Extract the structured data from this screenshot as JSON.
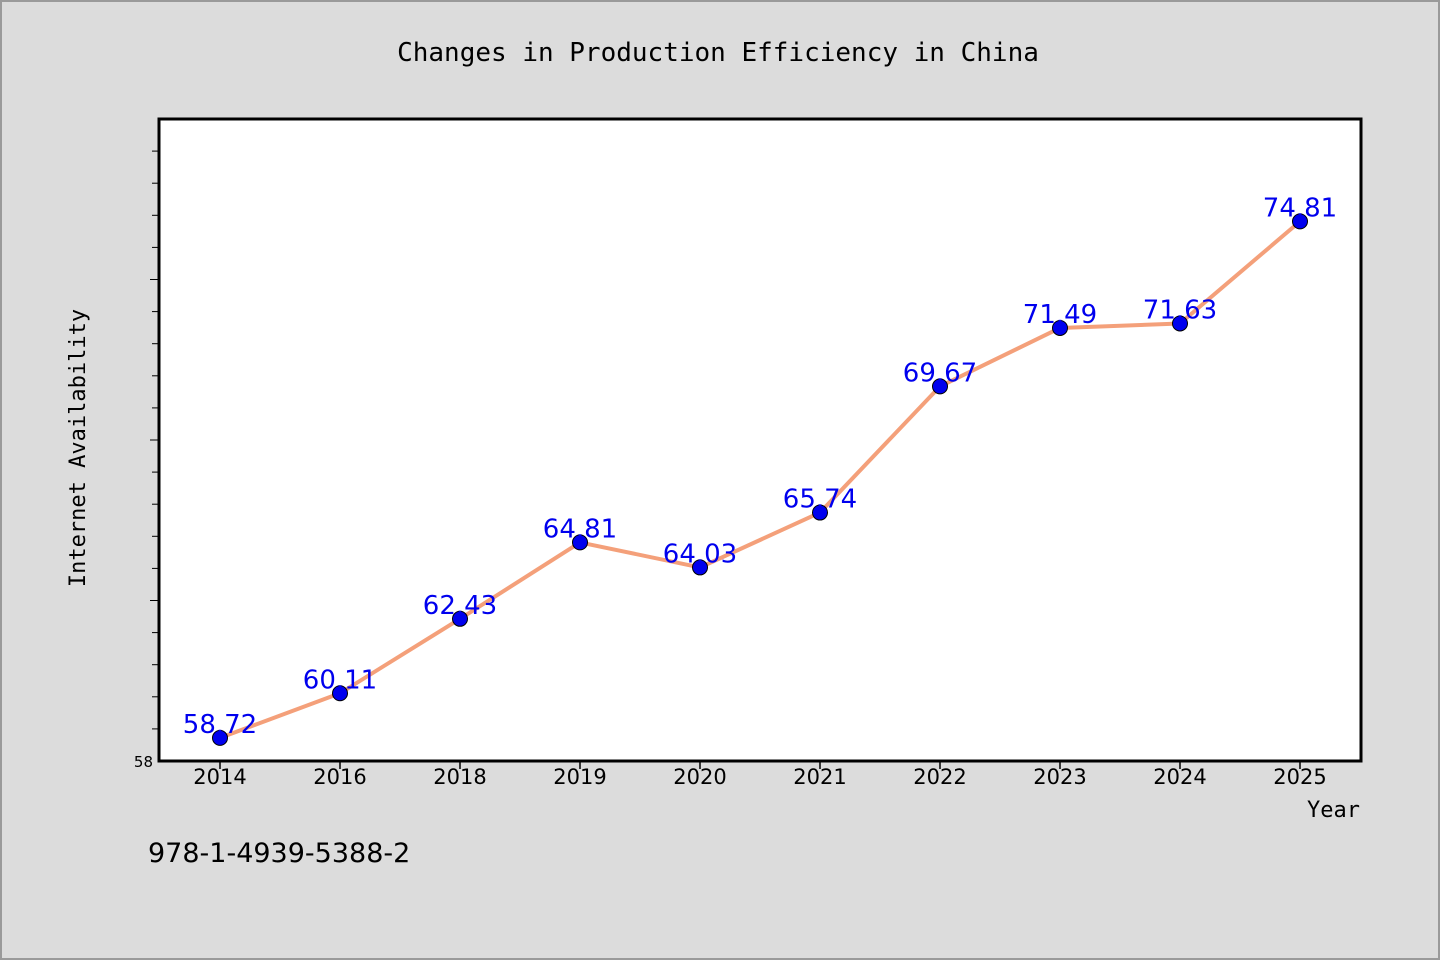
{
  "chart_data": {
    "type": "line",
    "title": "Changes in Production Efficiency in China",
    "xlabel": "Year",
    "ylabel": "Internet Availability",
    "categories": [
      "2014",
      "2016",
      "2018",
      "2019",
      "2020",
      "2021",
      "2022",
      "2023",
      "2024",
      "2025"
    ],
    "series": [
      {
        "values": [
          58.72,
          60.11,
          62.43,
          64.81,
          64.03,
          65.74,
          69.67,
          71.49,
          71.63,
          74.81
        ],
        "line_color": "#f4a07a",
        "marker_color": "#0000ee"
      }
    ],
    "y_tick_labels": [
      {
        "value": 58,
        "label": "58"
      }
    ],
    "ylim": [
      58,
      78
    ],
    "grid": false,
    "legend": "none"
  },
  "footer_note": "978-1-4939-5388-2"
}
